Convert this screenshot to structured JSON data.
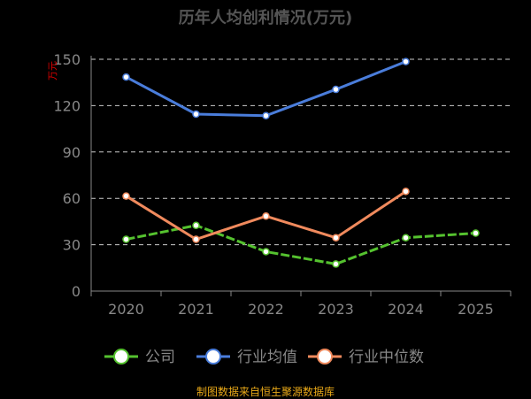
{
  "title": "历年人均创利情况(万元)",
  "source_note": "制图数据来自恒生聚源数据库",
  "colors": {
    "background": "#000000",
    "axis": "#888888",
    "grid": "#cccccc",
    "tick_label": "#888888",
    "unit_label": "#e00000",
    "title": "#555555",
    "source": "#e8a818"
  },
  "chart_data": {
    "type": "line",
    "title": "历年人均创利情况(万元)",
    "ylabel": "万元",
    "xlabel": "",
    "categories": [
      "2020",
      "2021",
      "2022",
      "2023",
      "2024",
      "2025"
    ],
    "y_ticks": [
      0,
      30,
      60,
      90,
      120,
      150
    ],
    "ylim": [
      0,
      150
    ],
    "grid": true,
    "legend_position": "bottom",
    "series": [
      {
        "name": "公司",
        "color": "#55c22f",
        "values": [
          33.5,
          42.5,
          25.5,
          17.5,
          34.5,
          37.5
        ]
      },
      {
        "name": "行业均值",
        "color": "#4a7ddb",
        "values": [
          138.5,
          114.5,
          113.5,
          130.5,
          148.5,
          null
        ]
      },
      {
        "name": "行业中位数",
        "color": "#f08a5d",
        "values": [
          61.5,
          33.5,
          48.5,
          34.5,
          64.5,
          null
        ]
      }
    ]
  }
}
